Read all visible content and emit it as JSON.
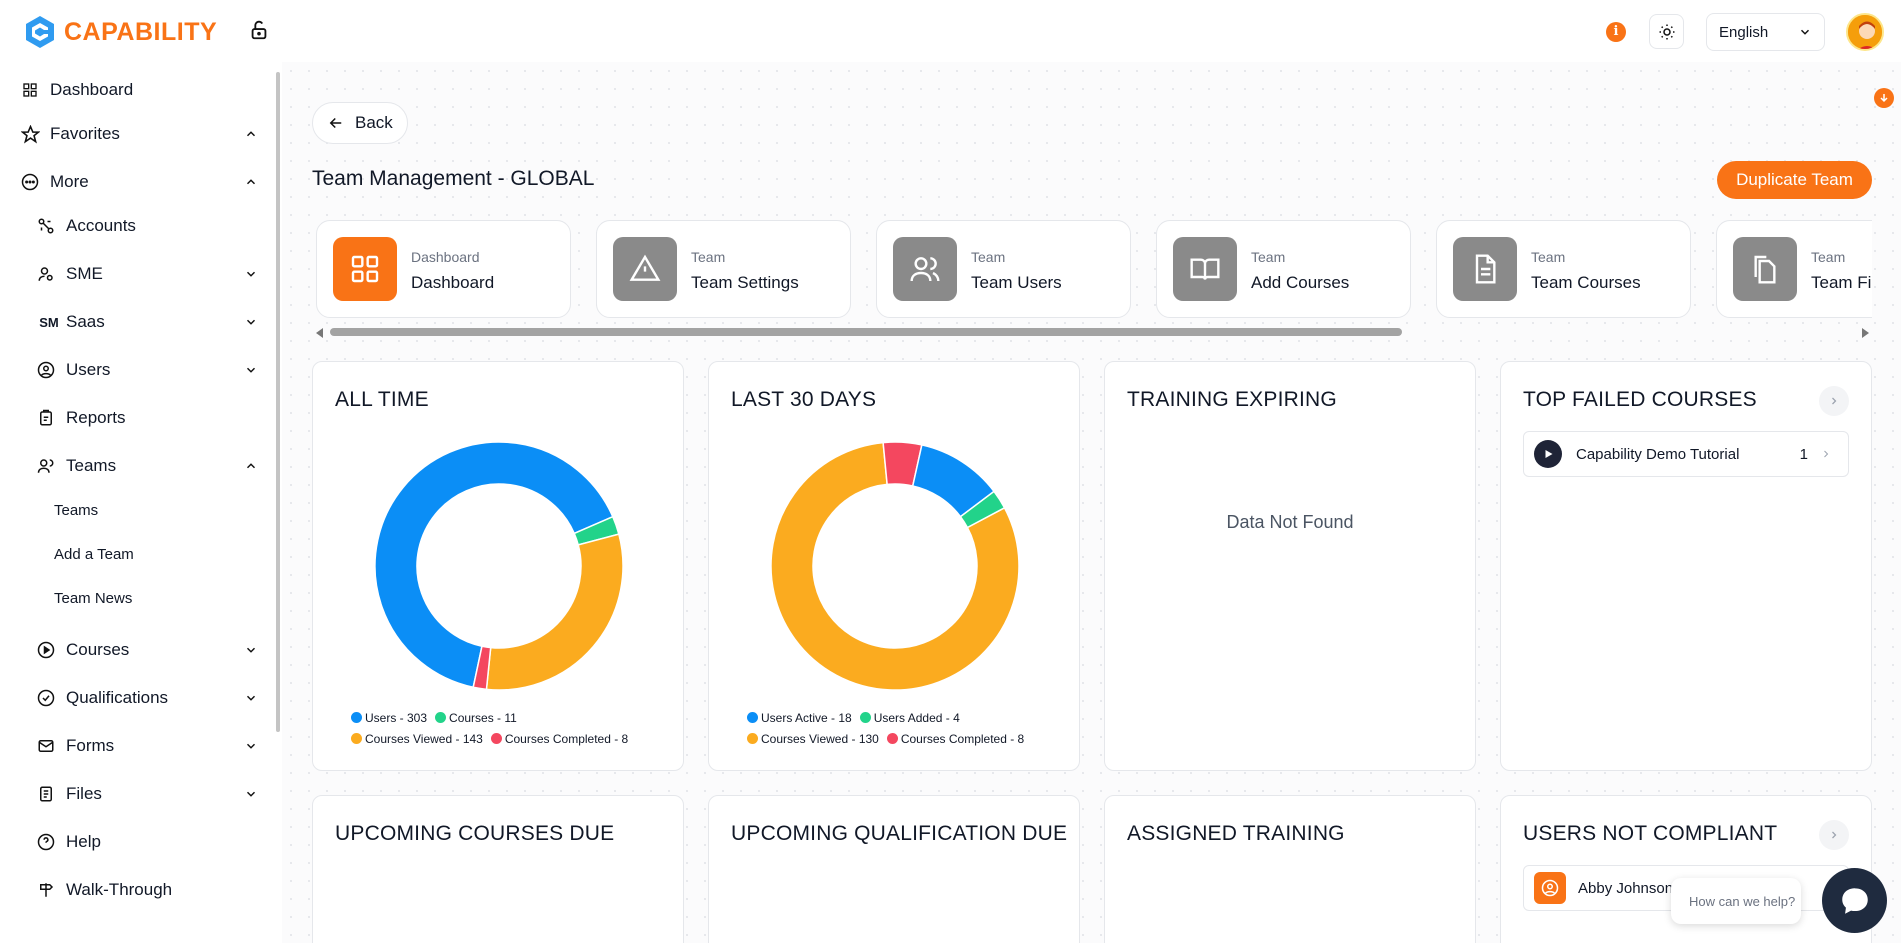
{
  "app": {
    "brand": "CAPABILITY",
    "language": "English",
    "info_badge": "i"
  },
  "sidebar": {
    "items": [
      {
        "label": "Dashboard"
      },
      {
        "label": "Favorites"
      },
      {
        "label": "More"
      },
      {
        "label": "Accounts"
      },
      {
        "label": "SME"
      },
      {
        "label": "Saas",
        "icon_text": "SM"
      },
      {
        "label": "Users"
      },
      {
        "label": "Reports"
      },
      {
        "label": "Teams"
      },
      {
        "label": "Courses"
      },
      {
        "label": "Qualifications"
      },
      {
        "label": "Forms"
      },
      {
        "label": "Files"
      },
      {
        "label": "Help"
      },
      {
        "label": "Walk-Through"
      }
    ],
    "team_sub": [
      "Teams",
      "Add a Team",
      "Team News"
    ]
  },
  "header": {
    "back_label": "Back",
    "page_title": "Team Management - GLOBAL",
    "duplicate_label": "Duplicate Team"
  },
  "tabs": [
    {
      "small": "Dashboard",
      "label": "Dashboard",
      "icon": "grid-icon",
      "active": true
    },
    {
      "small": "Team",
      "label": "Team Settings",
      "icon": "warning-icon",
      "active": false
    },
    {
      "small": "Team",
      "label": "Team Users",
      "icon": "users-icon",
      "active": false
    },
    {
      "small": "Team",
      "label": "Add Courses",
      "icon": "book-icon",
      "active": false
    },
    {
      "small": "Team",
      "label": "Team Courses",
      "icon": "document-icon",
      "active": false
    },
    {
      "small": "Team",
      "label": "Team Files",
      "icon": "files-icon",
      "active": false
    }
  ],
  "cards": {
    "all_time": {
      "title": "ALL TIME"
    },
    "last_30": {
      "title": "LAST 30 DAYS"
    },
    "training_expiring": {
      "title": "TRAINING EXPIRING",
      "empty": "Data Not Found"
    },
    "top_failed": {
      "title": "TOP FAILED COURSES",
      "rows": [
        {
          "name": "Capability Demo Tutorial",
          "count": "1"
        }
      ]
    },
    "upcoming_courses": {
      "title": "UPCOMING COURSES DUE"
    },
    "upcoming_qual": {
      "title": "UPCOMING QUALIFICATION DUE"
    },
    "assigned": {
      "title": "ASSIGNED TRAINING"
    },
    "not_compliant": {
      "title": "USERS NOT COMPLIANT",
      "rows": [
        {
          "name": "Abby Johnson"
        }
      ]
    }
  },
  "chat": {
    "placeholder": "How can we help?"
  },
  "colors": {
    "accent": "#f97316",
    "blue": "#0b8ef6",
    "green": "#22d38a",
    "orange": "#fbab1f",
    "red": "#f4475f"
  },
  "chart_data": [
    {
      "type": "pie",
      "title": "ALL TIME",
      "categories": [
        "Users",
        "Courses",
        "Courses Viewed",
        "Courses Completed"
      ],
      "values": [
        303,
        11,
        143,
        8
      ],
      "legend": [
        "Users - 303",
        "Courses - 11",
        "Courses Viewed - 143",
        "Courses Completed - 8"
      ],
      "colors": [
        "#0b8ef6",
        "#22d38a",
        "#fbab1f",
        "#f4475f"
      ]
    },
    {
      "type": "pie",
      "title": "LAST 30 DAYS",
      "categories": [
        "Users Active",
        "Users Added",
        "Courses Viewed",
        "Courses Completed"
      ],
      "values": [
        18,
        4,
        130,
        8
      ],
      "legend": [
        "Users Active - 18",
        "Users Added - 4",
        "Courses Viewed - 130",
        "Courses Completed - 8"
      ],
      "colors": [
        "#0b8ef6",
        "#22d38a",
        "#fbab1f",
        "#f4475f"
      ]
    }
  ]
}
